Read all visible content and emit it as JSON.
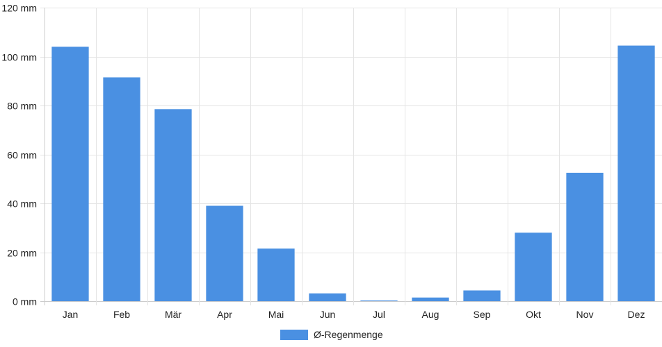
{
  "chart_data": {
    "type": "bar",
    "categories": [
      "Jan",
      "Feb",
      "Mär",
      "Apr",
      "Mai",
      "Jun",
      "Jul",
      "Aug",
      "Sep",
      "Okt",
      "Nov",
      "Dez"
    ],
    "series": [
      {
        "name": "Ø-Regenmenge",
        "color": "#4a90e2",
        "values": [
          104,
          91.5,
          78.5,
          39,
          21.5,
          3.2,
          0.3,
          1.5,
          4.4,
          28,
          52.5,
          104.5
        ]
      }
    ],
    "y_ticks": [
      "0 mm",
      "20 mm",
      "40 mm",
      "60 mm",
      "80 mm",
      "100 mm",
      "120 mm"
    ],
    "ylim": [
      0,
      120
    ],
    "y_unit": "mm",
    "title": "",
    "xlabel": "",
    "ylabel": "",
    "grid": true,
    "legend_position": "bottom-center"
  }
}
